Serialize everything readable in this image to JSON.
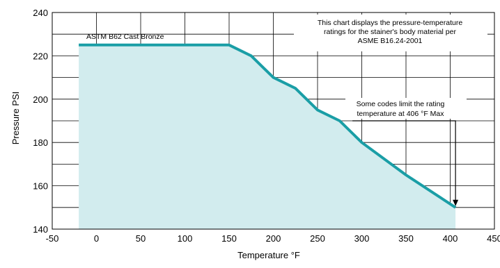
{
  "chart_data": {
    "type": "area",
    "title": "",
    "xlabel": "Temperature °F",
    "ylabel": "Pressure PSI",
    "xlim": [
      -50,
      450
    ],
    "ylim": [
      140,
      240
    ],
    "x_ticks": [
      "-50",
      "0",
      "50",
      "100",
      "150",
      "200",
      "250",
      "300",
      "350",
      "400",
      "450"
    ],
    "y_ticks": [
      "140",
      "160",
      "180",
      "200",
      "220",
      "240"
    ],
    "x_tick_values": [
      -50,
      0,
      50,
      100,
      150,
      200,
      250,
      300,
      350,
      400,
      450
    ],
    "y_tick_values": [
      140,
      160,
      180,
      200,
      220,
      240
    ],
    "grid": true,
    "series": [
      {
        "name": "ASTM B62 Cast Bronze",
        "x": [
          -20,
          150,
          175,
          200,
          225,
          250,
          275,
          300,
          350,
          406
        ],
        "y": [
          225,
          225,
          220,
          210,
          205,
          195,
          190,
          180,
          165,
          150
        ]
      }
    ],
    "annotations": {
      "info_lines": [
        "This chart displays the pressure-temperature",
        "ratings  for the stainer's body material per",
        "ASME B16.24-2001"
      ],
      "limit_lines": [
        "Some codes limit the rating",
        "temperature at 406 °F Max"
      ],
      "limit_x": 406,
      "limit_y": 190
    },
    "colors": {
      "line": "#1a9ea6",
      "fill": "#d2ecee",
      "grid": "#000000"
    }
  }
}
